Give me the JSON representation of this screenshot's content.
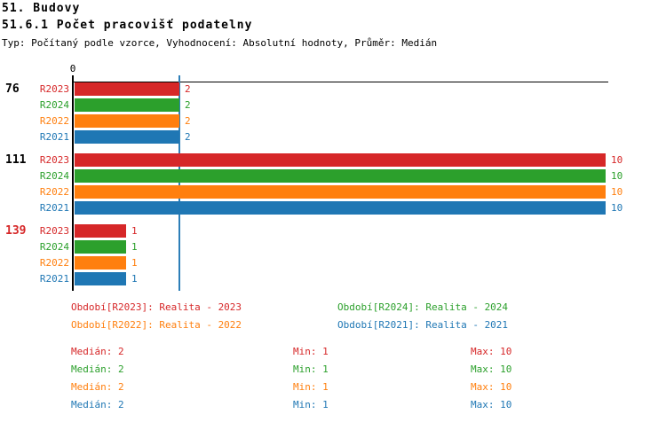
{
  "header": {
    "title": "51. Budovy",
    "subtitle": "51.6.1 Počet pracovišť podatelny",
    "meta": "Typ: Počítaný podle vzorce, Vyhodnocení: Absolutní hodnoty, Průměr: Medián"
  },
  "colors": {
    "R2023": "#d62728",
    "R2024": "#2ca02c",
    "R2022": "#ff7f0e",
    "R2021": "#1f77b4",
    "axis": "#000000",
    "median_line": "#2d7fb8",
    "group_label_default": "#000000",
    "group_label_highlight": "#d62728"
  },
  "chart_data": {
    "type": "bar",
    "orientation": "horizontal",
    "title": "51.6.1 Počet pracovišť podatelny",
    "xlabel": "",
    "ylabel": "",
    "xlim": [
      0,
      10
    ],
    "axis_origin_label": "0",
    "grid": false,
    "median_line_value": 2,
    "series_order": [
      "R2023",
      "R2024",
      "R2022",
      "R2021"
    ],
    "groups": [
      {
        "label": "76",
        "label_color": "#000000",
        "bars": [
          {
            "series": "R2023",
            "value": 2
          },
          {
            "series": "R2024",
            "value": 2
          },
          {
            "series": "R2022",
            "value": 2
          },
          {
            "series": "R2021",
            "value": 2
          }
        ]
      },
      {
        "label": "111",
        "label_color": "#000000",
        "bars": [
          {
            "series": "R2023",
            "value": 10
          },
          {
            "series": "R2024",
            "value": 10
          },
          {
            "series": "R2022",
            "value": 10
          },
          {
            "series": "R2021",
            "value": 10
          }
        ]
      },
      {
        "label": "139",
        "label_color": "#d62728",
        "bars": [
          {
            "series": "R2023",
            "value": 1
          },
          {
            "series": "R2024",
            "value": 1
          },
          {
            "series": "R2022",
            "value": 1
          },
          {
            "series": "R2021",
            "value": 1
          }
        ]
      }
    ]
  },
  "legend": [
    {
      "label": "Období[R2023]: Realita - 2023",
      "color": "#d62728"
    },
    {
      "label": "Období[R2024]: Realita - 2024",
      "color": "#2ca02c"
    },
    {
      "label": "Období[R2022]: Realita - 2022",
      "color": "#ff7f0e"
    },
    {
      "label": "Období[R2021]: Realita - 2021",
      "color": "#1f77b4"
    }
  ],
  "stats": [
    {
      "series": "R2023",
      "color": "#d62728",
      "median": "Medián: 2",
      "min": "Min: 1",
      "max": "Max: 10"
    },
    {
      "series": "R2024",
      "color": "#2ca02c",
      "median": "Medián: 2",
      "min": "Min: 1",
      "max": "Max: 10"
    },
    {
      "series": "R2022",
      "color": "#ff7f0e",
      "median": "Medián: 2",
      "min": "Min: 1",
      "max": "Max: 10"
    },
    {
      "series": "R2021",
      "color": "#1f77b4",
      "median": "Medián: 2",
      "min": "Min: 1",
      "max": "Max: 10"
    }
  ]
}
